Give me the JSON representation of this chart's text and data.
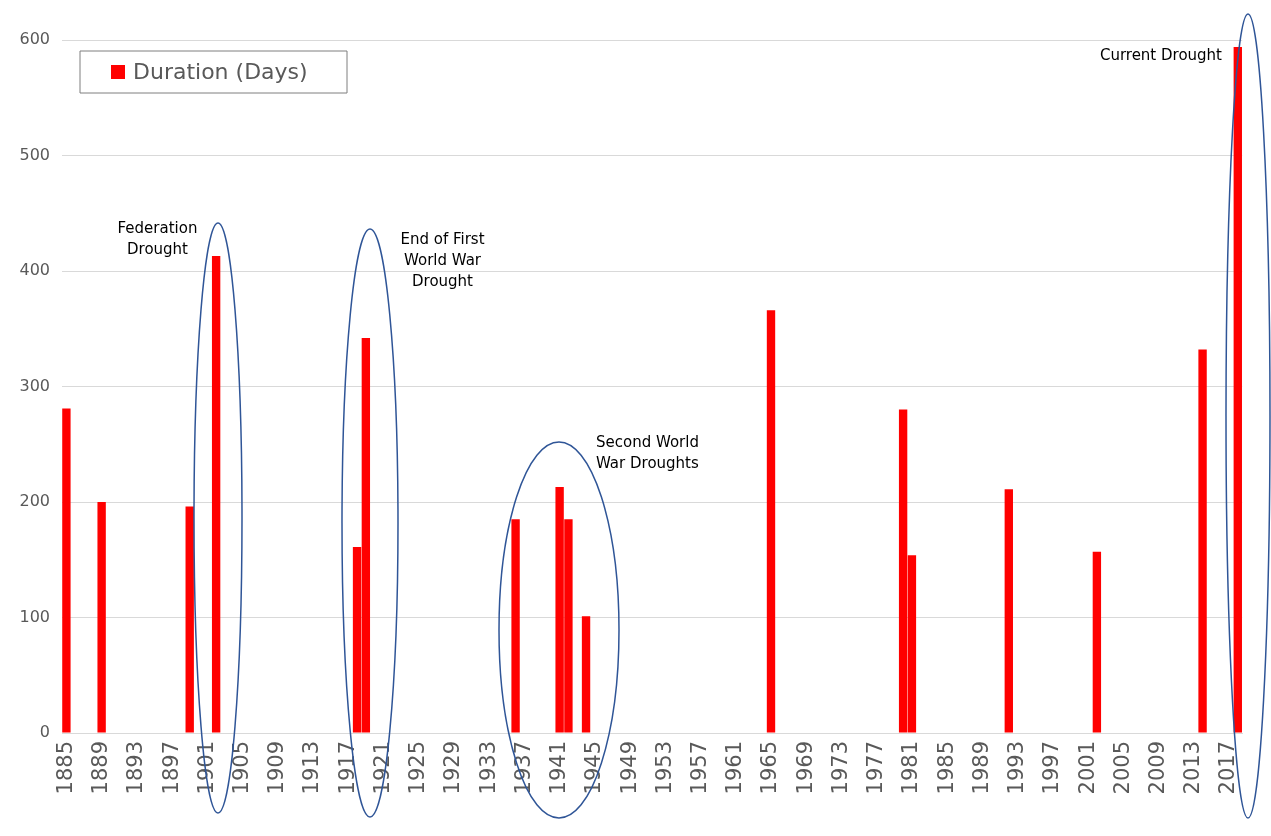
{
  "chart_data": {
    "type": "bar",
    "categories": [
      "1885",
      null,
      null,
      null,
      "1889",
      null,
      null,
      null,
      "1893",
      null,
      null,
      null,
      "1897",
      null,
      null,
      null,
      "1901",
      null,
      null,
      null,
      "1905",
      null,
      null,
      null,
      "1909",
      null,
      null,
      null,
      "1913",
      null,
      null,
      null,
      "1917",
      null,
      null,
      null,
      "1921",
      null,
      null,
      null,
      "1925",
      null,
      null,
      null,
      "1929",
      null,
      null,
      null,
      "1933",
      null,
      null,
      null,
      "1937",
      null,
      null,
      null,
      "1941",
      null,
      null,
      null,
      "1945",
      null,
      null,
      null,
      "1949",
      null,
      null,
      null,
      "1953",
      null,
      null,
      null,
      "1957",
      null,
      null,
      null,
      "1961",
      null,
      null,
      null,
      "1965",
      null,
      null,
      null,
      "1969",
      null,
      null,
      null,
      "1973",
      null,
      null,
      null,
      "1977",
      null,
      null,
      null,
      "1981",
      null,
      null,
      null,
      "1985",
      null,
      null,
      null,
      "1989",
      null,
      null,
      null,
      "1993",
      null,
      null,
      null,
      "1997",
      null,
      null,
      null,
      "2001",
      null,
      null,
      null,
      "2005",
      null,
      null,
      null,
      "2009",
      null,
      null,
      null,
      "2013",
      null,
      null,
      null,
      "2017",
      null
    ],
    "series": [
      {
        "name": "Duration (Days)",
        "color": "#ff0000",
        "values": [
          281,
          null,
          null,
          null,
          200,
          null,
          null,
          null,
          null,
          null,
          null,
          null,
          null,
          null,
          196,
          null,
          null,
          413,
          null,
          null,
          null,
          null,
          null,
          null,
          null,
          null,
          null,
          null,
          null,
          null,
          null,
          null,
          null,
          161,
          342,
          null,
          null,
          null,
          null,
          null,
          null,
          null,
          null,
          null,
          null,
          null,
          null,
          null,
          null,
          null,
          null,
          185,
          null,
          null,
          null,
          null,
          213,
          185,
          null,
          101,
          null,
          null,
          null,
          null,
          null,
          null,
          null,
          null,
          null,
          null,
          null,
          null,
          null,
          null,
          null,
          null,
          null,
          null,
          null,
          null,
          366,
          null,
          null,
          null,
          null,
          null,
          null,
          null,
          null,
          null,
          null,
          null,
          null,
          null,
          null,
          280,
          154,
          null,
          null,
          null,
          null,
          null,
          null,
          null,
          null,
          null,
          null,
          211,
          null,
          null,
          null,
          null,
          null,
          null,
          null,
          null,
          null,
          157,
          null,
          null,
          null,
          null,
          null,
          null,
          null,
          null,
          null,
          null,
          null,
          332,
          null,
          null,
          null,
          594
        ]
      }
    ],
    "ylim": [
      0,
      600
    ],
    "yticks": [
      0,
      100,
      200,
      300,
      400,
      500,
      600
    ],
    "grid": "y",
    "legend": "top left",
    "annotations": [
      "Federation Drought",
      "End of First World War Drought",
      "Second World War Droughts",
      "Current Drought"
    ]
  }
}
